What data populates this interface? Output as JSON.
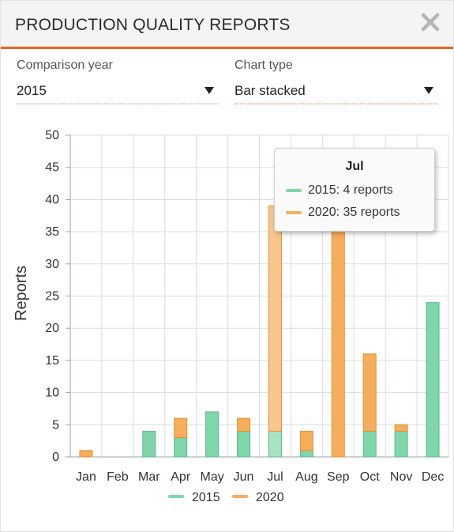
{
  "header": {
    "title": "PRODUCTION QUALITY REPORTS",
    "close_icon": "close-icon"
  },
  "controls": {
    "comparison_year": {
      "label": "Comparison year",
      "value": "2015"
    },
    "chart_type": {
      "label": "Chart type",
      "value": "Bar stacked"
    }
  },
  "colors": {
    "accent": "#e8641e",
    "series_2015": "#7fd6a9",
    "series_2020": "#f6ad5c"
  },
  "chart_data": {
    "type": "bar",
    "stacked": true,
    "categories": [
      "Jan",
      "Feb",
      "Mar",
      "Apr",
      "May",
      "Jun",
      "Jul",
      "Aug",
      "Sep",
      "Oct",
      "Nov",
      "Dec"
    ],
    "series": [
      {
        "name": "2015",
        "values": [
          0,
          0,
          4,
          3,
          7,
          4,
          4,
          1,
          0,
          4,
          4,
          24
        ]
      },
      {
        "name": "2020",
        "values": [
          1,
          0,
          0,
          3,
          0,
          2,
          35,
          3,
          42,
          12,
          1,
          0
        ]
      }
    ],
    "ylabel": "Reports",
    "ylim": [
      0,
      50
    ],
    "yticks": [
      "0",
      "5",
      "10",
      "15",
      "20",
      "25",
      "30",
      "35",
      "40",
      "45",
      "50"
    ],
    "grid": true,
    "legend_position": "bottom"
  },
  "tooltip": {
    "title": "Jul",
    "rows": [
      {
        "label": "2015:",
        "value": "4 reports"
      },
      {
        "label": "2020:",
        "value": "35 reports"
      }
    ]
  }
}
